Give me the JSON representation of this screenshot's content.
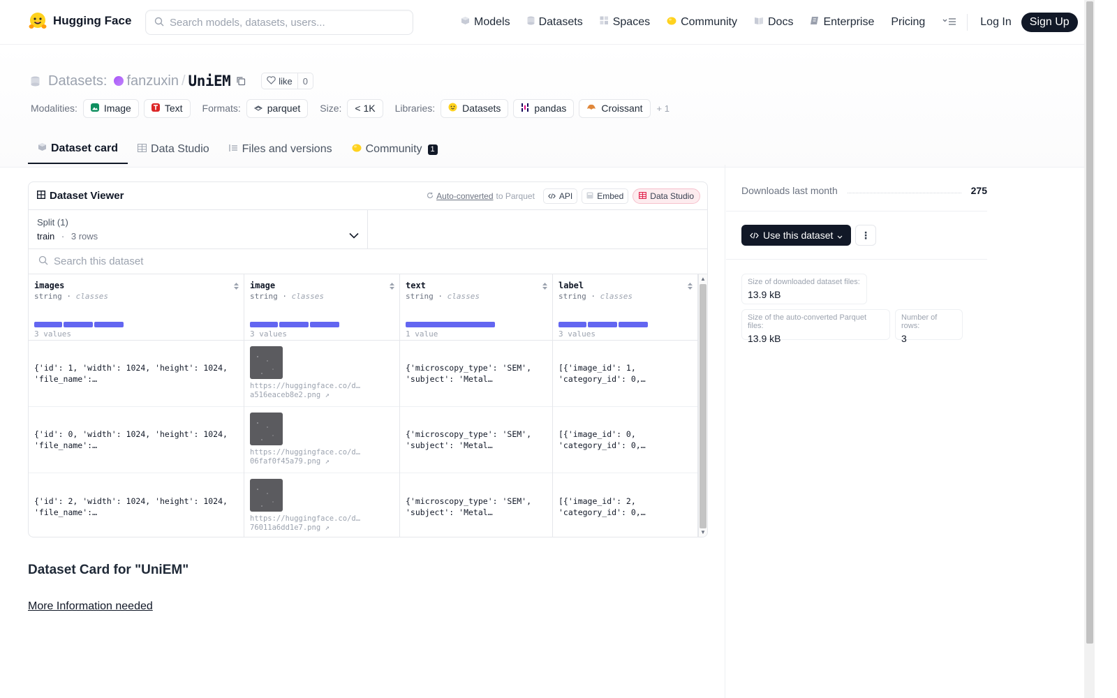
{
  "nav": {
    "brand": "Hugging Face",
    "search_placeholder": "Search models, datasets, users...",
    "links": [
      {
        "label": "Models",
        "icon": "cube-icon"
      },
      {
        "label": "Datasets",
        "icon": "database-icon"
      },
      {
        "label": "Spaces",
        "icon": "grid-icon"
      },
      {
        "label": "Community",
        "icon": "hand-icon"
      },
      {
        "label": "Docs",
        "icon": "book-icon"
      },
      {
        "label": "Enterprise",
        "icon": "enterprise-icon"
      },
      {
        "label": "Pricing"
      }
    ],
    "login": "Log In",
    "signup": "Sign Up"
  },
  "header": {
    "prefix": "Datasets:",
    "owner": "fanzuxin",
    "separator": "/",
    "repo": "UniEM",
    "like_label": "like",
    "like_count": "0",
    "modalities_label": "Modalities:",
    "modalities": [
      "Image",
      "Text"
    ],
    "formats_label": "Formats:",
    "format": "parquet",
    "size_label": "Size:",
    "size": "< 1K",
    "libraries_label": "Libraries:",
    "libraries": [
      "Datasets",
      "pandas",
      "Croissant"
    ],
    "more": "+ 1"
  },
  "tabs": [
    {
      "label": "Dataset card",
      "active": true
    },
    {
      "label": "Data Studio"
    },
    {
      "label": "Files and versions"
    },
    {
      "label": "Community",
      "badge": "1"
    }
  ],
  "viewer": {
    "title": "Dataset Viewer",
    "auto_converted": "Auto-converted",
    "to_parquet": "to Parquet",
    "api": "API",
    "embed": "Embed",
    "data_studio": "Data Studio",
    "split_label": "Split (1)",
    "split_name": "train",
    "split_dot": "·",
    "split_rows": "3 rows",
    "search_placeholder": "Search this dataset",
    "columns": [
      {
        "name": "images",
        "type": "string",
        "kind": "classes",
        "count": "3 values",
        "bars": 3
      },
      {
        "name": "image",
        "type": "string",
        "kind": "classes",
        "count": "3 values",
        "bars": 3
      },
      {
        "name": "text",
        "type": "string",
        "kind": "classes",
        "count": "1 value",
        "bars": 1
      },
      {
        "name": "label",
        "type": "string",
        "kind": "classes",
        "count": "3 values",
        "bars": 3
      }
    ],
    "rows": [
      {
        "images": "{'id': 1, 'width': 1024, 'height': 1024,\n'file_name':…",
        "image_url_1": "https://huggingface.co/d…",
        "image_url_2": "a516eaceb8e2.png ↗",
        "text": "{'microscopy_type': 'SEM',\n'subject': 'Metal…",
        "label": "[{'image_id': 1,\n'category_id': 0,…"
      },
      {
        "images": "{'id': 0, 'width': 1024, 'height': 1024,\n'file_name':…",
        "image_url_1": "https://huggingface.co/d…",
        "image_url_2": "06faf0f45a79.png ↗",
        "text": "{'microscopy_type': 'SEM',\n'subject': 'Metal…",
        "label": "[{'image_id': 0,\n'category_id': 0,…"
      },
      {
        "images": "{'id': 2, 'width': 1024, 'height': 1024,\n'file_name':…",
        "image_url_1": "https://huggingface.co/d…",
        "image_url_2": "76011a6dd1e7.png ↗",
        "text": "{'microscopy_type': 'SEM',\n'subject': 'Metal…",
        "label": "[{'image_id': 2,\n'category_id': 0,…"
      }
    ]
  },
  "card": {
    "title": "Dataset Card for \"UniEM\"",
    "more_info": "More Information needed"
  },
  "sidebar": {
    "downloads_label": "Downloads last month",
    "downloads": "275",
    "use_dataset": "Use this dataset",
    "stats": [
      {
        "label": "Size of downloaded dataset files:",
        "value": "13.9 kB"
      },
      {
        "label": "Size of the auto-converted Parquet files:",
        "value": "13.9 kB"
      },
      {
        "label": "Number of rows:",
        "value": "3"
      }
    ]
  },
  "colors": {
    "accent_bar": "#6366f1",
    "primary_dark": "#111827",
    "data_studio_pink": "#fdecef"
  }
}
